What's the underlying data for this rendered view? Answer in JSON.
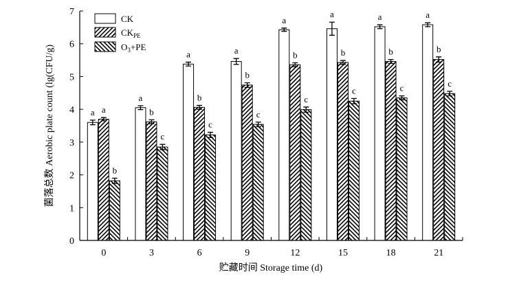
{
  "chart_data": {
    "type": "bar",
    "xlabel": "贮藏时间 Storage time (d)",
    "ylabel": "菌落总数 Aerobic plate count (lg(CFU/g)",
    "categories": [
      "0",
      "3",
      "6",
      "9",
      "12",
      "15",
      "18",
      "21"
    ],
    "ylim": [
      0,
      7
    ],
    "yticks": [
      "0",
      "1",
      "2",
      "3",
      "4",
      "5",
      "6",
      "7"
    ],
    "grid": false,
    "legend_position": "top-left",
    "series": [
      {
        "name": "CK",
        "name_base": "CK",
        "name_sub": "",
        "name_rest": "",
        "pattern": "white",
        "values": [
          3.6,
          4.05,
          5.38,
          5.46,
          6.43,
          6.46,
          6.52,
          6.58
        ],
        "errors": [
          0.07,
          0.06,
          0.06,
          0.09,
          0.05,
          0.2,
          0.06,
          0.06
        ],
        "labels": [
          "a",
          "a",
          "a",
          "a",
          "a",
          "a",
          "a",
          "a"
        ]
      },
      {
        "name": "CKPE",
        "name_base": "CK",
        "name_sub": "PE",
        "name_rest": "",
        "pattern": "hatch-forward",
        "values": [
          3.7,
          3.62,
          4.06,
          4.74,
          5.36,
          5.43,
          5.46,
          5.52
        ],
        "errors": [
          0.05,
          0.06,
          0.06,
          0.07,
          0.06,
          0.06,
          0.06,
          0.08
        ],
        "labels": [
          "a",
          "b",
          "b",
          "b",
          "b",
          "b",
          "b",
          "b"
        ]
      },
      {
        "name": "O3+PE",
        "name_base": "O",
        "name_sub": "3",
        "name_rest": "+PE",
        "pattern": "hatch-back",
        "values": [
          1.82,
          2.85,
          3.22,
          3.54,
          3.99,
          4.25,
          4.35,
          4.48
        ],
        "errors": [
          0.08,
          0.08,
          0.08,
          0.07,
          0.08,
          0.08,
          0.06,
          0.07
        ],
        "labels": [
          "b",
          "c",
          "c",
          "c",
          "c",
          "c",
          "c",
          "c"
        ]
      }
    ]
  },
  "colors": {
    "ink": "#000000",
    "background": "#ffffff"
  }
}
